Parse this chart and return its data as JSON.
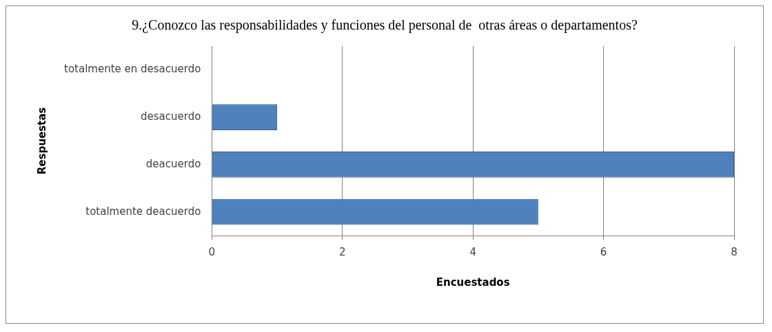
{
  "chart_data": {
    "type": "bar",
    "orientation": "horizontal",
    "title": "9.¿Conozco las responsabilidades y funciones del personal de  otras áreas o departamentos?",
    "xlabel": "Encuestados",
    "ylabel": "Respuestas",
    "categories": [
      "totalmente en desacuerdo",
      "desacuerdo",
      "deacuerdo",
      "totalmente deacuerdo"
    ],
    "values": [
      0,
      1,
      8,
      5
    ],
    "color": "#4f81bd",
    "xlim": [
      0,
      8
    ],
    "xticks": [
      0,
      2,
      4,
      6,
      8
    ],
    "grid": "x",
    "legend": false
  }
}
